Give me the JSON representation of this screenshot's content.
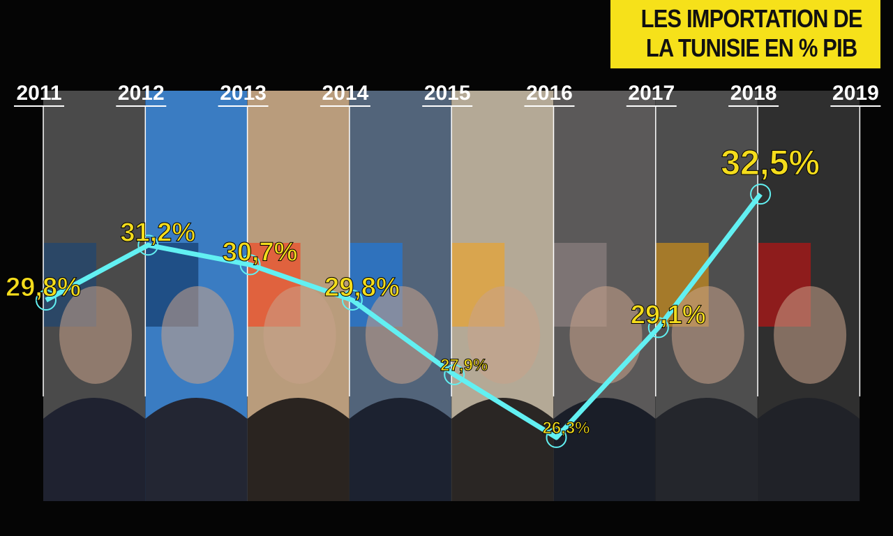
{
  "chart_data": {
    "type": "line",
    "title": "LES IMPORTATION DE LA TUNISIE EN % PIB",
    "categories": [
      "2011",
      "2012",
      "2013",
      "2014",
      "2015",
      "2016",
      "2017",
      "2018",
      "2019"
    ],
    "values": [
      29.8,
      31.2,
      30.7,
      29.8,
      27.9,
      26.3,
      29.1,
      32.5,
      null
    ],
    "value_labels": [
      "29,8%",
      "31,2%",
      "30,7%",
      "29,8%",
      "27,9%",
      "26,3%",
      "29,1%",
      "32,5%",
      null
    ],
    "color": "#62f0f2",
    "ylim": [
      25,
      33
    ]
  }
}
